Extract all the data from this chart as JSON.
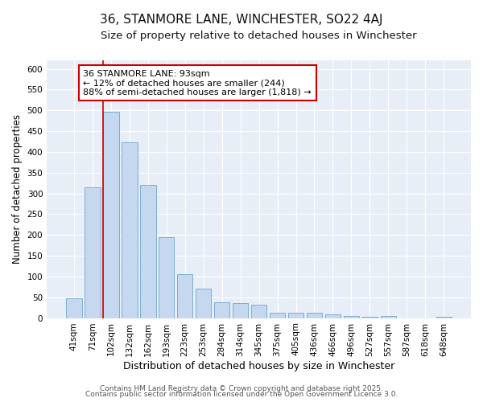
{
  "title": "36, STANMORE LANE, WINCHESTER, SO22 4AJ",
  "subtitle": "Size of property relative to detached houses in Winchester",
  "xlabel": "Distribution of detached houses by size in Winchester",
  "ylabel": "Number of detached properties",
  "categories": [
    "41sqm",
    "71sqm",
    "102sqm",
    "132sqm",
    "162sqm",
    "193sqm",
    "223sqm",
    "253sqm",
    "284sqm",
    "314sqm",
    "345sqm",
    "375sqm",
    "405sqm",
    "436sqm",
    "466sqm",
    "496sqm",
    "527sqm",
    "557sqm",
    "587sqm",
    "618sqm",
    "648sqm"
  ],
  "values": [
    47,
    315,
    497,
    424,
    320,
    195,
    105,
    70,
    38,
    35,
    32,
    13,
    13,
    13,
    8,
    5,
    3,
    5,
    0,
    0,
    3
  ],
  "bar_color": "#c5d8f0",
  "bar_edge_color": "#7bafd4",
  "figure_background": "#ffffff",
  "axes_background": "#e8eef7",
  "grid_color": "#ffffff",
  "vline_color": "#cc0000",
  "vline_x_index": 2,
  "annotation_text": "36 STANMORE LANE: 93sqm\n← 12% of detached houses are smaller (244)\n88% of semi-detached houses are larger (1,818) →",
  "annotation_box_facecolor": "#ffffff",
  "annotation_box_edgecolor": "#cc0000",
  "ylim": [
    0,
    620
  ],
  "yticks": [
    0,
    50,
    100,
    150,
    200,
    250,
    300,
    350,
    400,
    450,
    500,
    550,
    600
  ],
  "footer1": "Contains HM Land Registry data © Crown copyright and database right 2025.",
  "footer2": "Contains public sector information licensed under the Open Government Licence 3.0.",
  "title_fontsize": 11,
  "subtitle_fontsize": 9.5,
  "xlabel_fontsize": 9,
  "ylabel_fontsize": 8.5,
  "tick_fontsize": 7.5,
  "annotation_fontsize": 8,
  "footer_fontsize": 6.5
}
